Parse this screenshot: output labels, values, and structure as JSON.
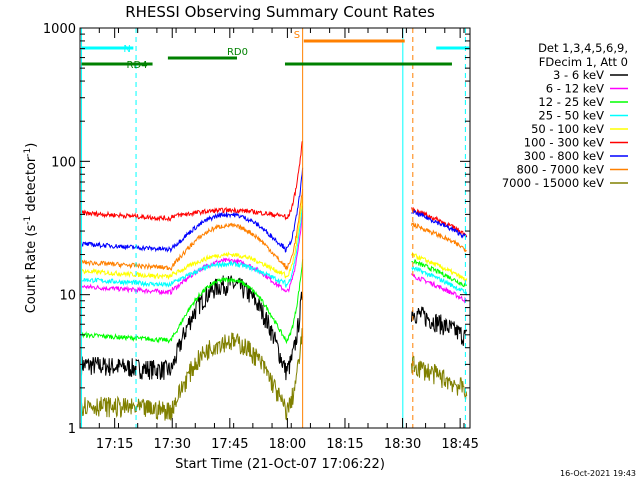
{
  "chart_data": {
    "type": "line",
    "title": "RHESSI Observing Summary Count Rates",
    "xlabel": "Start Time (21-Oct-07 17:06:22)",
    "ylabel_text": "Count Rate (s",
    "ylabel_sup": "-1",
    "ylabel_text2": " detector",
    "ylabel_sup2": "-1",
    "ylabel_end": ")",
    "y_scale": "log",
    "ylim": [
      1,
      1000
    ],
    "xlim_minutes": [
      -0.4,
      101.2
    ],
    "x_ticks": [
      {
        "m": 8.63,
        "label": "17:15"
      },
      {
        "m": 23.63,
        "label": "17:30"
      },
      {
        "m": 38.63,
        "label": "17:45"
      },
      {
        "m": 53.63,
        "label": "18:00"
      },
      {
        "m": 68.63,
        "label": "18:15"
      },
      {
        "m": 83.63,
        "label": "18:30"
      },
      {
        "m": 98.63,
        "label": "18:45"
      }
    ],
    "y_ticks": [
      {
        "v": 1,
        "label": "1"
      },
      {
        "v": 10,
        "label": "10"
      },
      {
        "v": 100,
        "label": "100"
      },
      {
        "v": 1000,
        "label": "1000"
      }
    ],
    "legend_header": [
      "Det 1,3,4,5,6,9,",
      "FDecim 1, Att 0"
    ],
    "legend_placement": "right",
    "gaps_minutes": [
      [
        57.6,
        85.9
      ]
    ],
    "series": [
      {
        "name": "3 - 6 keV",
        "color": "#000000",
        "base": 3.0,
        "bump": 12.0,
        "post": 7.5
      },
      {
        "name": "6 - 12 keV",
        "color": "#ff00ff",
        "base": 11.5,
        "bump": 18.0,
        "post": 14.0
      },
      {
        "name": "12 - 25 keV",
        "color": "#00ff00",
        "base": 5.0,
        "bump": 13.0,
        "post": 18.0
      },
      {
        "name": "25 - 50 keV",
        "color": "#00ffff",
        "base": 13.0,
        "bump": 17.0,
        "post": 16.0
      },
      {
        "name": "50 - 100 keV",
        "color": "#ffff00",
        "base": 15.0,
        "bump": 20.0,
        "post": 20.0
      },
      {
        "name": "100 - 300 keV",
        "color": "#ff0000",
        "base": 41.0,
        "bump": 43.0,
        "post": 44.0
      },
      {
        "name": "300 - 800 keV",
        "color": "#0000ff",
        "base": 24.0,
        "bump": 40.0,
        "post": 42.0
      },
      {
        "name": "800 - 7000 keV",
        "color": "#ff8000",
        "base": 17.5,
        "bump": 33.0,
        "post": 34.0
      },
      {
        "name": "7000 - 15000 keV",
        "color": "#808000",
        "base": 1.5,
        "bump": 4.5,
        "post": 3.0
      }
    ],
    "flags": [
      {
        "label": "N",
        "color": "#00ffff",
        "segments": [
          [
            0,
            13.5
          ],
          [
            92.4,
            101.0
          ]
        ]
      },
      {
        "label": "S",
        "color": "#ff8000",
        "segments": [
          [
            57.9,
            84.2
          ]
        ]
      },
      {
        "label": "RD0",
        "color": "#008000",
        "segments": [
          [
            22.5,
            40.5
          ]
        ]
      },
      {
        "label": "RD4",
        "color": "#008000",
        "segments": [
          [
            0,
            18.5
          ],
          [
            53.0,
            96.5
          ]
        ]
      }
    ],
    "v_markers_minutes": [
      {
        "m": 0.0,
        "color": "#00ffff",
        "style": "solid"
      },
      {
        "m": 14.2,
        "color": "#00ffff",
        "style": "dashed"
      },
      {
        "m": 57.6,
        "color": "#ff8000",
        "style": "solid"
      },
      {
        "m": 83.7,
        "color": "#00ffff",
        "style": "solid"
      },
      {
        "m": 86.3,
        "color": "#ff8000",
        "style": "dashed"
      },
      {
        "m": 100.0,
        "color": "#00ffff",
        "style": "dashed"
      }
    ]
  },
  "footer": {
    "timestamp": "16-Oct-2021 19:43"
  }
}
